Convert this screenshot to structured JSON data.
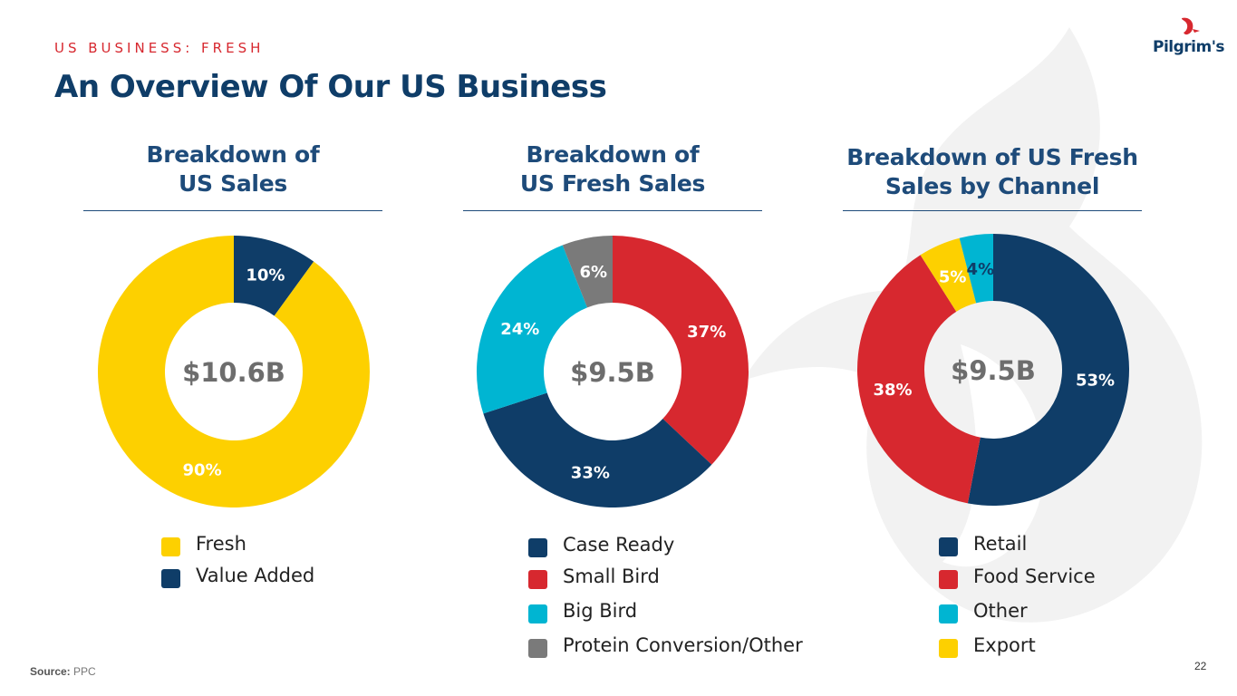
{
  "header": {
    "eyebrow": "US BUSINESS: FRESH",
    "title": "An Overview Of Our US Business",
    "logo_text": "Pilgrim's"
  },
  "colors": {
    "yellow": "#fdd000",
    "navy": "#0f3d68",
    "red": "#d7282f",
    "cyan": "#00b5d2",
    "gray": "#7a7a7a",
    "title_blue": "#1e4b7a"
  },
  "chart_data": [
    {
      "type": "pie",
      "title": "Breakdown of US Sales",
      "title_lines": [
        "Breakdown of",
        "US Sales"
      ],
      "center_label": "$10.6B",
      "categories": [
        "Fresh",
        "Value Added"
      ],
      "values": [
        90,
        10
      ],
      "labels": [
        "90%",
        "10%"
      ],
      "colors": [
        "#fdd000",
        "#0f3d68"
      ],
      "label_colors": [
        "#ffffff",
        "#ffffff"
      ],
      "slice_order": [
        1,
        0
      ]
    },
    {
      "type": "pie",
      "title": "Breakdown of US Fresh Sales",
      "title_lines": [
        "Breakdown of",
        "US Fresh Sales"
      ],
      "center_label": "$9.5B",
      "categories": [
        "Case Ready",
        "Small Bird",
        "Big Bird",
        "Protein Conversion/Other"
      ],
      "values": [
        33,
        37,
        24,
        6
      ],
      "labels": [
        "33%",
        "37%",
        "24%",
        "6%"
      ],
      "colors": [
        "#0f3d68",
        "#d7282f",
        "#00b5d2",
        "#7a7a7a"
      ],
      "label_colors": [
        "#ffffff",
        "#ffffff",
        "#ffffff",
        "#ffffff"
      ],
      "slice_order": [
        1,
        0,
        2,
        3
      ]
    },
    {
      "type": "pie",
      "title": "Breakdown of US Fresh Sales by Channel",
      "title_lines": [
        "Breakdown of US Fresh",
        "Sales by Channel"
      ],
      "center_label": "$9.5B",
      "categories": [
        "Retail",
        "Food Service",
        "Other",
        "Export"
      ],
      "values": [
        53,
        38,
        4,
        5
      ],
      "labels": [
        "53%",
        "38%",
        "4%",
        "5%"
      ],
      "colors": [
        "#0f3d68",
        "#d7282f",
        "#00b5d2",
        "#fdd000"
      ],
      "label_colors": [
        "#ffffff",
        "#ffffff",
        "#0f3d68",
        "#ffffff"
      ],
      "slice_order": [
        0,
        1,
        3,
        2
      ]
    }
  ],
  "footer": {
    "source_label": "Source:",
    "source_value": "PPC",
    "page_number": "22"
  }
}
